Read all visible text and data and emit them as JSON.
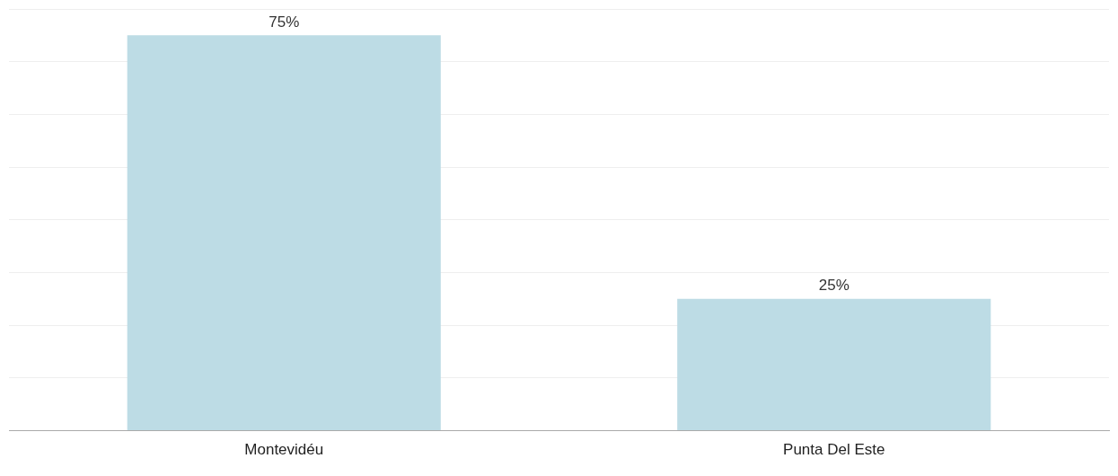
{
  "chart_data": {
    "type": "bar",
    "categories": [
      "Montevidéu",
      "Punta Del Este"
    ],
    "values": [
      75,
      25
    ],
    "value_labels": [
      "75%",
      "25%"
    ],
    "color": "#bddce5",
    "grid": "y",
    "tick_labels": "x"
  }
}
